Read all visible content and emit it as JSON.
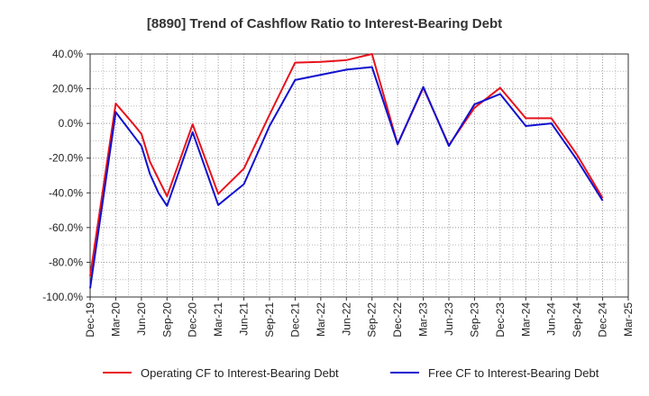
{
  "chart_data": {
    "type": "line",
    "title": "[8890]  Trend of Cashflow Ratio to Interest-Bearing Debt",
    "xlabel": "",
    "ylabel": "",
    "x_ticks": [
      "Dec-19",
      "Mar-20",
      "Jun-20",
      "Sep-20",
      "Dec-20",
      "Mar-21",
      "Jun-21",
      "Sep-21",
      "Dec-21",
      "Mar-22",
      "Jun-22",
      "Sep-22",
      "Dec-22",
      "Mar-23",
      "Jun-23",
      "Sep-23",
      "Dec-23",
      "Mar-24",
      "Jun-24",
      "Sep-24",
      "Dec-24",
      "Mar-25"
    ],
    "y_ticks": [
      "40.0%",
      "20.0%",
      "0.0%",
      "-20.0%",
      "-40.0%",
      "-60.0%",
      "-80.0%",
      "-100.0%"
    ],
    "ylim": [
      -100,
      40
    ],
    "grid": true,
    "legend_position": "bottom",
    "series": [
      {
        "name": "Operating CF to Interest-Bearing Debt",
        "color": "#e8111b",
        "points": [
          [
            "Dec-19",
            -88
          ],
          [
            "Mar-20",
            11.5
          ],
          [
            "May-20",
            0
          ],
          [
            "Jun-20",
            -6
          ],
          [
            "Jul-20",
            -22
          ],
          [
            "Sep-20",
            -42
          ],
          [
            "Dec-20",
            -0.5
          ],
          [
            "Mar-21",
            -40.5
          ],
          [
            "Jun-21",
            -26
          ],
          [
            "Sep-21",
            5
          ],
          [
            "Dec-21",
            35
          ],
          [
            "Mar-22",
            35.5
          ],
          [
            "Jun-22",
            36.5
          ],
          [
            "Sep-22",
            40
          ],
          [
            "Dec-22",
            -12
          ],
          [
            "Mar-23",
            20.5
          ],
          [
            "Jun-23",
            -12.5
          ],
          [
            "Sep-23",
            9
          ],
          [
            "Dec-23",
            20.5
          ],
          [
            "Mar-24",
            3
          ],
          [
            "Jun-24",
            3
          ],
          [
            "Sep-24",
            -18
          ],
          [
            "Dec-24",
            -43
          ]
        ]
      },
      {
        "name": "Free CF to Interest-Bearing Debt",
        "color": "#1010d0",
        "points": [
          [
            "Dec-19",
            -95
          ],
          [
            "Mar-20",
            6.5
          ],
          [
            "Jun-20",
            -13
          ],
          [
            "Jul-20",
            -29
          ],
          [
            "Aug-20",
            -40
          ],
          [
            "Sep-20",
            -47.5
          ],
          [
            "Dec-20",
            -5
          ],
          [
            "Mar-21",
            -47
          ],
          [
            "Jun-21",
            -35
          ],
          [
            "Sep-21",
            -1.5
          ],
          [
            "Dec-21",
            25
          ],
          [
            "Mar-22",
            28
          ],
          [
            "Jun-22",
            31
          ],
          [
            "Sep-22",
            32.5
          ],
          [
            "Dec-22",
            -12
          ],
          [
            "Mar-23",
            21
          ],
          [
            "Jun-23",
            -13
          ],
          [
            "Sep-23",
            11
          ],
          [
            "Dec-23",
            17
          ],
          [
            "Mar-24",
            -1.5
          ],
          [
            "Jun-24",
            0
          ],
          [
            "Sep-24",
            -21
          ],
          [
            "Dec-24",
            -44.5
          ]
        ]
      }
    ]
  }
}
